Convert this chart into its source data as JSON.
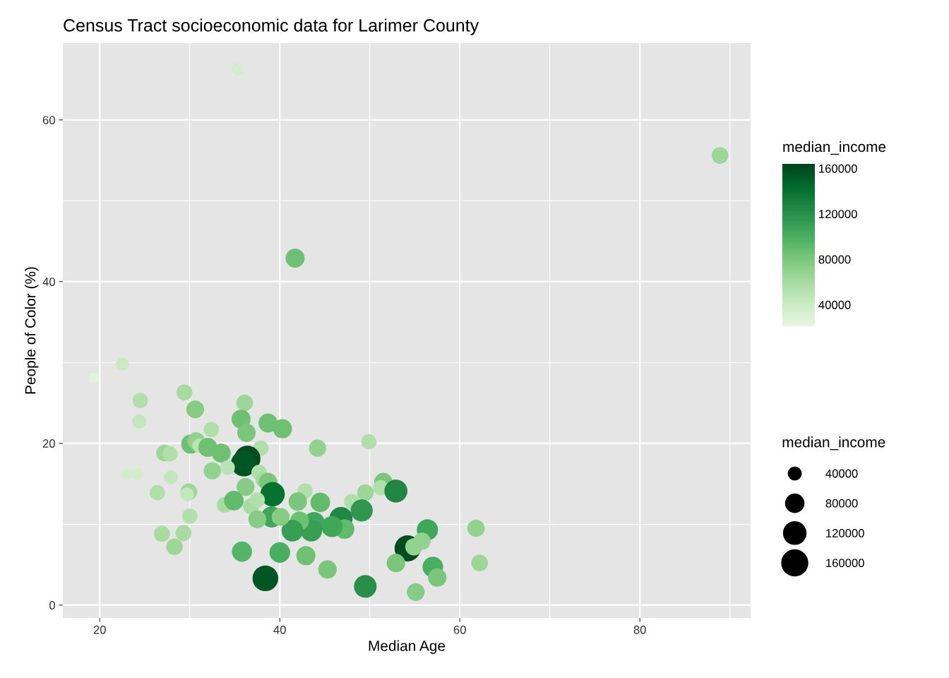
{
  "chart_data": {
    "type": "bubble",
    "title": "Census Tract socioeconomic data for Larimer County",
    "xlabel": "Median Age",
    "ylabel": "People of Color (%)",
    "clabel": "median_income",
    "legend_title": "median_income",
    "x": [
      35.3,
      88.9,
      41.7,
      19.3,
      22.5,
      24.5,
      24.4,
      29.4,
      30.6,
      36.1,
      35.7,
      38.7,
      40.3,
      36.3,
      32.4,
      44.2,
      49.9,
      30.1,
      30.7,
      31.1,
      32.0,
      33.5,
      37.9,
      36.4,
      36.0,
      34.2,
      32.5,
      37.7,
      38.2,
      38.7,
      39.2,
      36.2,
      42.8,
      33.9,
      34.9,
      36.8,
      37.5,
      42.0,
      44.5,
      48.0,
      49.5,
      51.5,
      51.2,
      52.9,
      49.1,
      46.8,
      47.2,
      45.8,
      43.8,
      43.5,
      42.2,
      41.4,
      39.1,
      40.1,
      37.5,
      35.8,
      40.0,
      42.9,
      38.4,
      45.3,
      49.5,
      56.4,
      54.2,
      54.9,
      55.8,
      52.9,
      57.0,
      57.5,
      55.1,
      27.2,
      27.8,
      23.1,
      24.2,
      27.9,
      26.4,
      29.9,
      29.7,
      26.9,
      29.3,
      28.3,
      30.0,
      61.8,
      62.2
    ],
    "values": [
      66.3,
      55.6,
      42.9,
      28.1,
      29.8,
      25.3,
      22.7,
      26.3,
      24.2,
      25.0,
      23.0,
      22.5,
      21.8,
      21.3,
      21.7,
      19.4,
      20.2,
      19.9,
      20.3,
      19.7,
      19.5,
      18.8,
      19.4,
      18.1,
      17.5,
      17.0,
      16.6,
      16.4,
      15.5,
      15.2,
      13.7,
      14.6,
      14.1,
      12.4,
      12.9,
      12.2,
      13.0,
      12.8,
      12.7,
      12.8,
      13.9,
      15.2,
      14.5,
      14.1,
      11.7,
      10.7,
      9.4,
      9.7,
      10.2,
      9.2,
      10.4,
      9.2,
      10.9,
      10.9,
      10.6,
      6.6,
      6.5,
      6.1,
      3.3,
      4.4,
      2.3,
      9.3,
      7.0,
      7.2,
      7.9,
      5.2,
      4.7,
      3.4,
      1.6,
      18.8,
      18.7,
      16.2,
      16.2,
      15.8,
      13.9,
      14.0,
      13.7,
      8.8,
      8.9,
      7.2,
      11.0,
      9.5,
      5.2
    ],
    "cvalues": [
      35000,
      65000,
      85000,
      25000,
      40000,
      55000,
      45000,
      60000,
      75000,
      65000,
      85000,
      85000,
      85000,
      80000,
      55000,
      70000,
      55000,
      85000,
      70000,
      50000,
      85000,
      85000,
      55000,
      160000,
      155000,
      50000,
      70000,
      55000,
      60000,
      80000,
      140000,
      75000,
      55000,
      60000,
      90000,
      60000,
      55000,
      80000,
      90000,
      55000,
      65000,
      80000,
      55000,
      125000,
      115000,
      125000,
      90000,
      105000,
      105000,
      110000,
      85000,
      110000,
      105000,
      75000,
      75000,
      95000,
      100000,
      85000,
      155000,
      80000,
      120000,
      105000,
      160000,
      70000,
      70000,
      80000,
      100000,
      80000,
      75000,
      65000,
      55000,
      35000,
      35000,
      45000,
      55000,
      65000,
      45000,
      60000,
      60000,
      65000,
      55000,
      70000,
      65000
    ],
    "sizes": [
      35000,
      65000,
      85000,
      25000,
      40000,
      55000,
      45000,
      60000,
      75000,
      65000,
      85000,
      85000,
      85000,
      80000,
      55000,
      70000,
      55000,
      85000,
      70000,
      50000,
      85000,
      85000,
      55000,
      160000,
      155000,
      50000,
      70000,
      55000,
      60000,
      80000,
      140000,
      75000,
      55000,
      60000,
      90000,
      60000,
      55000,
      80000,
      90000,
      55000,
      65000,
      80000,
      55000,
      125000,
      115000,
      125000,
      90000,
      105000,
      105000,
      110000,
      85000,
      110000,
      105000,
      75000,
      75000,
      95000,
      100000,
      85000,
      155000,
      80000,
      120000,
      105000,
      160000,
      70000,
      70000,
      80000,
      100000,
      80000,
      75000,
      65000,
      55000,
      35000,
      35000,
      45000,
      55000,
      65000,
      45000,
      60000,
      60000,
      65000,
      55000,
      70000,
      65000
    ],
    "size_legend": [
      40000,
      80000,
      120000,
      160000
    ],
    "clim": [
      21000,
      164000
    ],
    "cticks": [
      40000,
      80000,
      120000,
      160000
    ],
    "xlim": [
      15.9,
      92.3
    ],
    "ylim": [
      -1.6,
      69.5
    ],
    "xticks": [
      20,
      40,
      60,
      80
    ],
    "yticks": [
      0,
      20,
      40,
      60
    ],
    "grid": true,
    "marker": "circle"
  }
}
